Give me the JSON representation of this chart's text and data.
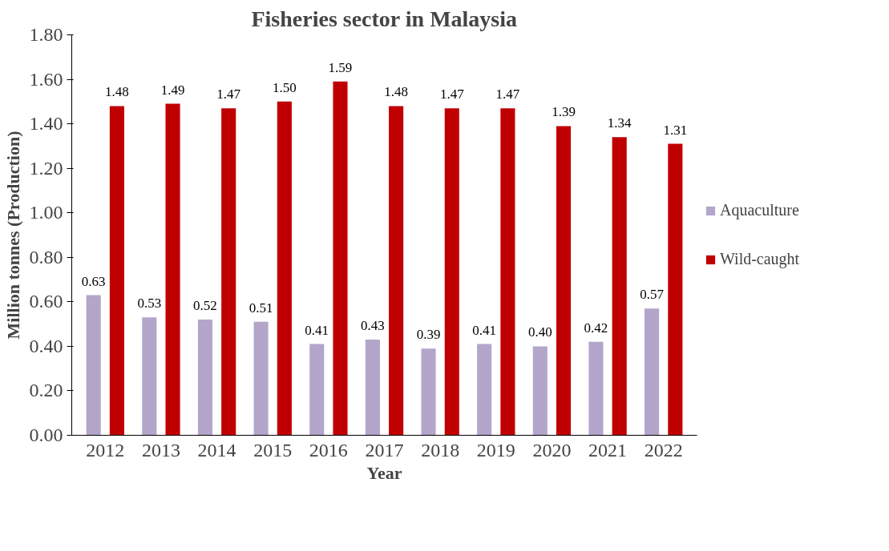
{
  "chart_data": {
    "type": "bar",
    "title": "Fisheries sector in Malaysia",
    "xlabel": "Year",
    "ylabel": "Million tonnes (Production)",
    "categories": [
      "2012",
      "2013",
      "2014",
      "2015",
      "2016",
      "2017",
      "2018",
      "2019",
      "2020",
      "2021",
      "2022"
    ],
    "series": [
      {
        "name": "Aquaculture",
        "color": "#b3a6ca",
        "values": [
          0.63,
          0.53,
          0.52,
          0.51,
          0.41,
          0.43,
          0.39,
          0.41,
          0.4,
          0.42,
          0.57
        ],
        "value_labels": [
          "0.63",
          "0.53",
          "0.52",
          "0.51",
          "0.41",
          "0.43",
          "0.39",
          "0.41",
          "0.40",
          "0.42",
          "0.57"
        ]
      },
      {
        "name": "Wild-caught",
        "color": "#c00000",
        "values": [
          1.48,
          1.49,
          1.47,
          1.5,
          1.59,
          1.48,
          1.47,
          1.47,
          1.39,
          1.34,
          1.31
        ],
        "value_labels": [
          "1.48",
          "1.49",
          "1.47",
          "1.50",
          "1.59",
          "1.48",
          "1.47",
          "1.47",
          "1.39",
          "1.34",
          "1.31"
        ]
      }
    ],
    "ylim": [
      0,
      1.8
    ],
    "yticks": [
      {
        "value": 0,
        "label": "0.00"
      },
      {
        "value": 0.2,
        "label": "0.20"
      },
      {
        "value": 0.4,
        "label": "0.40"
      },
      {
        "value": 0.6,
        "label": "0.60"
      },
      {
        "value": 0.8,
        "label": "0.80"
      },
      {
        "value": 1.0,
        "label": "1.00"
      },
      {
        "value": 1.2,
        "label": "1.20"
      },
      {
        "value": 1.4,
        "label": "1.40"
      },
      {
        "value": 1.6,
        "label": "1.60"
      },
      {
        "value": 1.8,
        "label": "1.80"
      }
    ],
    "grid": false,
    "legend": "right"
  }
}
